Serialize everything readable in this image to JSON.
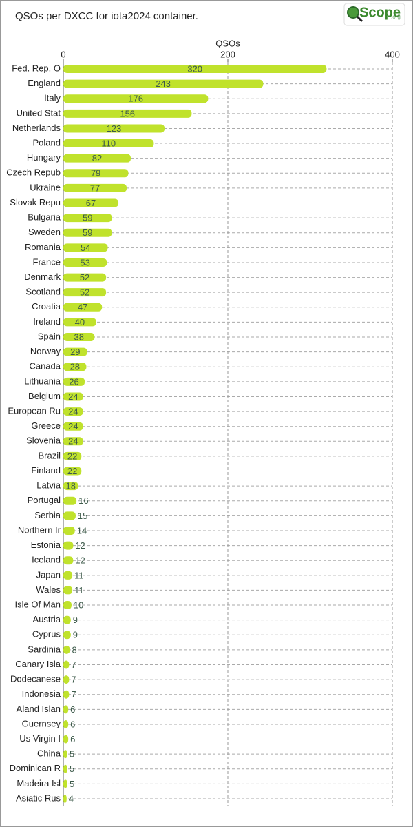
{
  "chart_data": {
    "type": "barh",
    "title": "QSOs per DXCC for iota2024 container.",
    "logo": "Scope",
    "logo_suffix": ".org",
    "x_label": "QSOs",
    "categories": [
      "Fed. Rep. O",
      "England",
      "Italy",
      "United Stat",
      "Netherlands",
      "Poland",
      "Hungary",
      "Czech Repub",
      "Ukraine",
      "Slovak Repu",
      "Bulgaria",
      "Sweden",
      "Romania",
      "France",
      "Denmark",
      "Scotland",
      "Croatia",
      "Ireland",
      "Spain",
      "Norway",
      "Canada",
      "Lithuania",
      "Belgium",
      "European Ru",
      "Greece",
      "Slovenia",
      "Brazil",
      "Finland",
      "Latvia",
      "Portugal",
      "Serbia",
      "Northern Ir",
      "Estonia",
      "Iceland",
      "Japan",
      "Wales",
      "Isle Of Man",
      "Austria",
      "Cyprus",
      "Sardinia",
      "Canary Isla",
      "Dodecanese",
      "Indonesia",
      "Aland Islan",
      "Guernsey",
      "Us Virgin I",
      "China",
      "Dominican R",
      "Madeira Isl",
      "Asiatic Rus"
    ],
    "values": [
      320,
      243,
      176,
      156,
      123,
      110,
      82,
      79,
      77,
      67,
      59,
      59,
      54,
      53,
      52,
      52,
      47,
      40,
      38,
      29,
      28,
      26,
      24,
      24,
      24,
      24,
      22,
      22,
      18,
      16,
      15,
      14,
      12,
      12,
      11,
      11,
      10,
      9,
      9,
      8,
      7,
      7,
      7,
      6,
      6,
      6,
      5,
      5,
      5,
      4
    ],
    "color": "#c0e22c",
    "xlim": [
      0,
      400
    ],
    "xticks": [
      0,
      200,
      400
    ],
    "grid": true
  }
}
